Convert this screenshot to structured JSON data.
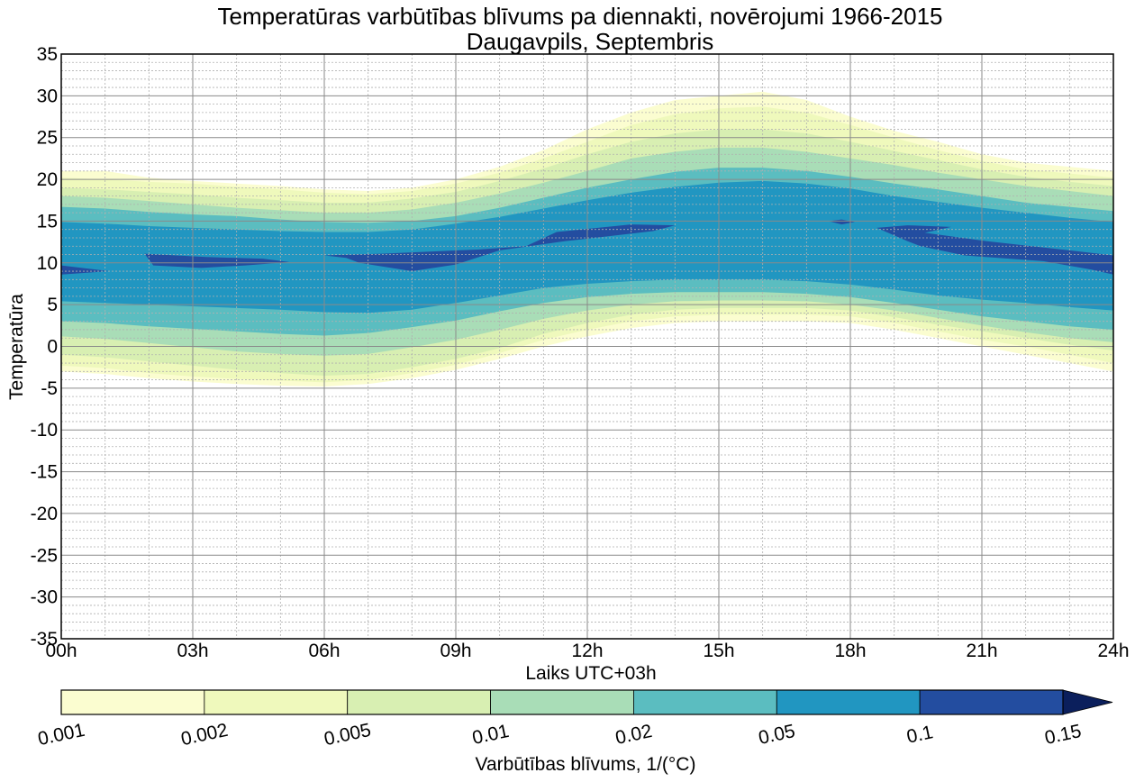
{
  "chart_data": {
    "type": "contourf",
    "title": "Temperatūras varbūtības blīvums pa diennakti, novērojumi 1966-2015",
    "subtitle": "Daugavpils, Septembris",
    "xlabel": "Laiks UTC+03h",
    "ylabel": "Temperatūra",
    "xlim": [
      0,
      24
    ],
    "ylim": [
      -35,
      35
    ],
    "x_ticks": [
      0,
      3,
      6,
      9,
      12,
      15,
      18,
      21,
      24
    ],
    "x_tick_labels": [
      "00h",
      "03h",
      "06h",
      "09h",
      "12h",
      "15h",
      "18h",
      "21h",
      "24h"
    ],
    "y_ticks": [
      -35,
      -30,
      -25,
      -20,
      -15,
      -10,
      -5,
      0,
      5,
      10,
      15,
      20,
      25,
      30,
      35
    ],
    "y_tick_labels": [
      "-35",
      "-30",
      "-25",
      "-20",
      "-15",
      "-10",
      "-5",
      "0",
      "5",
      "10",
      "15",
      "20",
      "25",
      "30",
      "35"
    ],
    "grid": {
      "major": true,
      "minor": true,
      "minor_x_step_hours": 1,
      "minor_y_step": 1
    },
    "colorbar": {
      "label": "Varbūtības blīvums, 1/(°C)",
      "levels": [
        0.001,
        0.002,
        0.005,
        0.01,
        0.02,
        0.05,
        0.1,
        0.15
      ],
      "tick_labels": [
        "0.001",
        "0.002",
        "0.005",
        "0.01",
        "0.02",
        "0.05",
        "0.1",
        "0.15"
      ],
      "colors": [
        "#fbfdd0",
        "#eff9bc",
        "#d8efb2",
        "#a9ddb7",
        "#5bbdc0",
        "#2196c1",
        "#234da0",
        "#0b1f5c"
      ],
      "extend": "max",
      "placement": "bottom"
    },
    "x": [
      0,
      1,
      2,
      3,
      4,
      5,
      6,
      7,
      8,
      9,
      10,
      11,
      12,
      13,
      14,
      15,
      16,
      17,
      18,
      19,
      20,
      21,
      22,
      23,
      24
    ],
    "bands": [
      {
        "level": 0.001,
        "lower": [
          -3,
          -3.3,
          -3.8,
          -4.2,
          -4.5,
          -4.7,
          -4.8,
          -4.5,
          -3.8,
          -2.8,
          -1.5,
          0,
          1.2,
          2.2,
          2.8,
          3,
          3,
          3,
          2.8,
          2,
          1,
          0,
          -1,
          -2,
          -3
        ],
        "upper": [
          21,
          21,
          20.2,
          19.8,
          19.5,
          19.2,
          18.8,
          18.6,
          19,
          20,
          21.5,
          23.5,
          26,
          28,
          29.5,
          30,
          30.5,
          29.5,
          27.5,
          25.8,
          24.5,
          23,
          22,
          21.5,
          21
        ]
      },
      {
        "level": 0.002,
        "lower": [
          -2.3,
          -2.6,
          -3.2,
          -3.6,
          -3.9,
          -4.1,
          -4.3,
          -4,
          -3.2,
          -2.2,
          -0.8,
          0.8,
          2,
          3,
          3.6,
          3.8,
          3.8,
          3.8,
          3.6,
          2.8,
          1.8,
          0.8,
          0,
          -1,
          -2
        ],
        "upper": [
          20.2,
          20,
          19.7,
          19.5,
          19.1,
          18.8,
          18.4,
          18.2,
          18.6,
          19.5,
          20.8,
          22.5,
          24.5,
          26.5,
          27.8,
          28.5,
          28.7,
          28,
          26.5,
          25,
          23.5,
          22.2,
          21.2,
          20.7,
          20.2
        ]
      },
      {
        "level": 0.005,
        "lower": [
          -1,
          -1.3,
          -1.8,
          -2.3,
          -2.8,
          -3.2,
          -3.5,
          -3.3,
          -2.5,
          -1.5,
          -0.2,
          1.5,
          2.8,
          3.8,
          4.4,
          4.6,
          4.6,
          4.6,
          4.3,
          3.5,
          2.6,
          1.8,
          1,
          0.2,
          -0.5
        ],
        "upper": [
          19,
          18.8,
          18.5,
          18.2,
          17.8,
          17.5,
          17.2,
          17.2,
          17.7,
          18.5,
          19.8,
          21.3,
          23,
          24.5,
          25.5,
          26,
          26,
          25.5,
          24.5,
          23.4,
          22.3,
          21.2,
          20.3,
          19.7,
          19.2
        ]
      },
      {
        "level": 0.01,
        "lower": [
          1.2,
          0.9,
          0.4,
          -0.1,
          -0.6,
          -0.9,
          -1.1,
          -0.9,
          -0.1,
          0.8,
          2,
          3.3,
          4.3,
          5,
          5.4,
          5.5,
          5.5,
          5.4,
          5,
          4.3,
          3.4,
          2.5,
          1.7,
          1,
          0.5
        ],
        "upper": [
          18,
          17.8,
          17.4,
          17,
          16.6,
          16.3,
          16,
          16,
          16.4,
          17.2,
          18.3,
          19.6,
          21,
          22.5,
          23.3,
          23.8,
          23.8,
          23.3,
          22.5,
          21.7,
          20.8,
          20,
          19.2,
          18.6,
          18
        ]
      },
      {
        "level": 0.02,
        "lower": [
          3,
          2.8,
          2.4,
          2.1,
          1.8,
          1.5,
          1.3,
          1.6,
          2.3,
          3.1,
          4.2,
          5.2,
          5.9,
          6.3,
          6.5,
          6.5,
          6.5,
          6.3,
          5.9,
          5.2,
          4.4,
          3.6,
          3,
          2.4,
          2
        ],
        "upper": [
          16.7,
          16.5,
          16.1,
          15.8,
          15.6,
          15.2,
          14.9,
          14.8,
          15,
          15.6,
          16.6,
          17.8,
          19,
          20,
          20.9,
          21.4,
          21.4,
          21,
          20.3,
          19.5,
          18.8,
          18,
          17.2,
          16.7,
          16.2
        ]
      },
      {
        "level": 0.05,
        "lower": [
          5.4,
          5.2,
          5,
          4.8,
          4.6,
          4.4,
          4.1,
          4,
          4.4,
          5.2,
          6.1,
          7,
          7.5,
          7.8,
          8,
          8,
          8,
          7.8,
          7.4,
          6.8,
          6.1,
          5.6,
          5.2,
          4.7,
          4.3
        ],
        "upper": [
          14.9,
          14.7,
          14.4,
          14.2,
          14,
          13.8,
          13.7,
          13.7,
          14,
          14.7,
          15.5,
          16.5,
          17.5,
          18.4,
          19.1,
          19.6,
          19.8,
          19.5,
          18.9,
          18,
          17.3,
          16.6,
          16,
          15.4,
          14.9
        ]
      }
    ],
    "peak_regions_level": 0.1,
    "peak_regions": [
      {
        "x": [
          0,
          1.1,
          0
        ],
        "upper": [
          9.7,
          9,
          9.7
        ],
        "lower": [
          8.6,
          9,
          8.6
        ],
        "poly": [
          [
            0,
            9.7
          ],
          [
            1.1,
            9.0
          ],
          [
            0,
            8.6
          ]
        ]
      },
      {
        "poly": [
          [
            1.9,
            11.1
          ],
          [
            3.3,
            10.7
          ],
          [
            4.6,
            10.5
          ],
          [
            5.2,
            10.1
          ],
          [
            4.2,
            9.7
          ],
          [
            3.2,
            9.4
          ],
          [
            2.1,
            9.7
          ]
        ]
      },
      {
        "poly": [
          [
            6,
            10.9
          ],
          [
            7.3,
            11.1
          ],
          [
            9.5,
            11.6
          ],
          [
            10.6,
            12
          ],
          [
            11.3,
            13.7
          ],
          [
            13,
            14.6
          ],
          [
            14,
            14.5
          ],
          [
            13.5,
            13.8
          ],
          [
            11.5,
            12.6
          ],
          [
            10,
            11.5
          ],
          [
            9,
            9.8
          ],
          [
            8,
            9
          ],
          [
            6.8,
            10
          ],
          [
            6.5,
            10.6
          ]
        ]
      },
      {
        "poly": [
          [
            17.5,
            15
          ],
          [
            17.8,
            15.2
          ],
          [
            18.1,
            14.9
          ],
          [
            17.8,
            14.6
          ]
        ]
      },
      {
        "poly": [
          [
            18.6,
            14.2
          ],
          [
            19.3,
            14.5
          ],
          [
            20.3,
            14.3
          ],
          [
            19.7,
            13.6
          ],
          [
            21.1,
            12.6
          ],
          [
            23,
            11.5
          ],
          [
            24,
            10.9
          ],
          [
            24,
            8.6
          ],
          [
            23.5,
            9.2
          ],
          [
            22.4,
            10.2
          ],
          [
            20.6,
            10.9
          ],
          [
            19.6,
            12
          ],
          [
            19.3,
            12.6
          ]
        ]
      }
    ]
  }
}
